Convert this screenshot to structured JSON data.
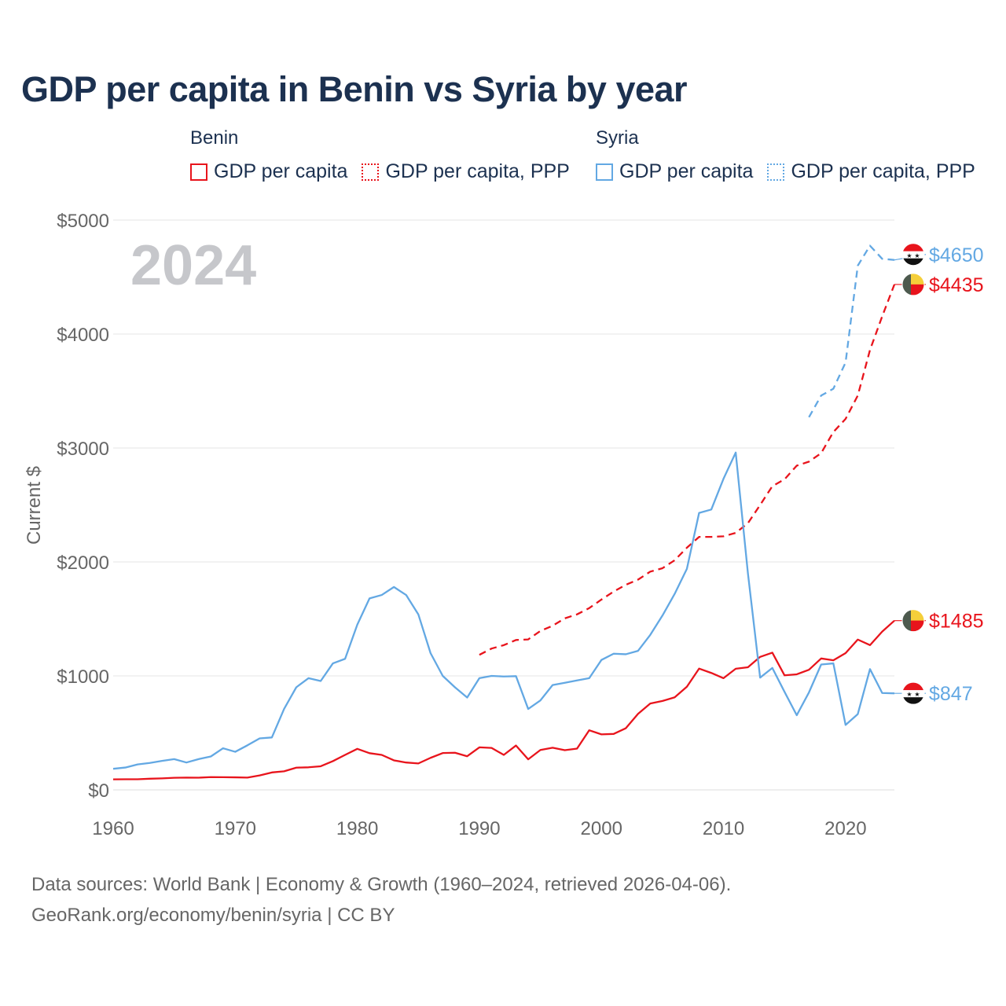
{
  "title": "GDP per capita in Benin vs Syria by year",
  "legend": {
    "benin": {
      "group": "Benin",
      "items": [
        "GDP per capita",
        "GDP per capita, PPP"
      ],
      "color": "#e8141c"
    },
    "syria": {
      "group": "Syria",
      "items": [
        "GDP per capita",
        "GDP per capita, PPP"
      ],
      "color": "#63a8e3"
    }
  },
  "chart_data": {
    "type": "line",
    "title": "GDP per capita in Benin vs Syria by year",
    "xlabel": "",
    "ylabel": "Current $",
    "xlim": [
      1960,
      2024
    ],
    "ylim": [
      0,
      5000
    ],
    "grid": true,
    "year_label": "2024",
    "x_ticks": [
      1960,
      1970,
      1980,
      1990,
      2000,
      2010,
      2020
    ],
    "x_tick_labels": [
      "1960",
      "1970",
      "1980",
      "1990",
      "2000",
      "2010",
      "2020"
    ],
    "y_ticks": [
      0,
      1000,
      2000,
      3000,
      4000,
      5000
    ],
    "y_tick_labels": [
      "$0",
      "$1000",
      "$2000",
      "$3000",
      "$4000",
      "$5000"
    ],
    "series": [
      {
        "name": "Benin GDP per capita",
        "country": "Benin",
        "color": "#e8141c",
        "style": "solid",
        "end_label": "$1485",
        "end_value": 1485,
        "x_start": 1960,
        "values": [
          92,
          93,
          93,
          98,
          101,
          106,
          108,
          107,
          112,
          111,
          110,
          108,
          127,
          153,
          163,
          195,
          198,
          207,
          252,
          307,
          360,
          322,
          307,
          259,
          240,
          232,
          281,
          323,
          326,
          295,
          373,
          368,
          307,
          389,
          268,
          350,
          370,
          348,
          362,
          523,
          487,
          491,
          541,
          667,
          758,
          780,
          812,
          905,
          1064,
          1026,
          980,
          1063,
          1076,
          1167,
          1204,
          1005,
          1014,
          1054,
          1153,
          1137,
          1200,
          1319,
          1270,
          1389,
          1485
        ]
      },
      {
        "name": "Benin GDP per capita, PPP",
        "country": "Benin",
        "color": "#e8141c",
        "style": "dashed",
        "end_label": "$4435",
        "end_value": 4435,
        "x_start": 1990,
        "values": [
          1185,
          1240,
          1270,
          1315,
          1320,
          1395,
          1440,
          1505,
          1540,
          1595,
          1670,
          1740,
          1800,
          1845,
          1915,
          1945,
          2015,
          2125,
          2220,
          2220,
          2225,
          2255,
          2340,
          2500,
          2665,
          2725,
          2845,
          2880,
          2955,
          3140,
          3255,
          3460,
          3860,
          4155,
          4435
        ]
      },
      {
        "name": "Syria GDP per capita",
        "country": "Syria",
        "color": "#63a8e3",
        "style": "solid",
        "end_label": "$847",
        "end_value": 847,
        "x_start": 1960,
        "values": [
          185,
          196,
          223,
          236,
          254,
          270,
          240,
          270,
          293,
          365,
          334,
          391,
          452,
          460,
          710,
          900,
          980,
          955,
          1110,
          1150,
          1450,
          1680,
          1710,
          1780,
          1710,
          1540,
          1200,
          1000,
          900,
          810,
          980,
          1000,
          995,
          998,
          710,
          785,
          920,
          940,
          960,
          980,
          1140,
          1195,
          1190,
          1220,
          1360,
          1530,
          1720,
          1940,
          2430,
          2460,
          2730,
          2960,
          1900,
          985,
          1070,
          860,
          655,
          855,
          1100,
          1110,
          570,
          665,
          1060,
          850,
          847
        ]
      },
      {
        "name": "Syria GDP per capita, PPP",
        "country": "Syria",
        "color": "#63a8e3",
        "style": "dashed",
        "end_label": "$4650",
        "end_value": 4650,
        "x_start": 2017,
        "values": [
          3270,
          3460,
          3520,
          3750,
          4600,
          4775,
          4660,
          4650
        ]
      }
    ]
  },
  "source": {
    "line1": "Data sources: World Bank | Economy & Growth (1960–2024, retrieved 2026-04-06).",
    "line2": "GeoRank.org/economy/benin/syria | CC BY"
  }
}
